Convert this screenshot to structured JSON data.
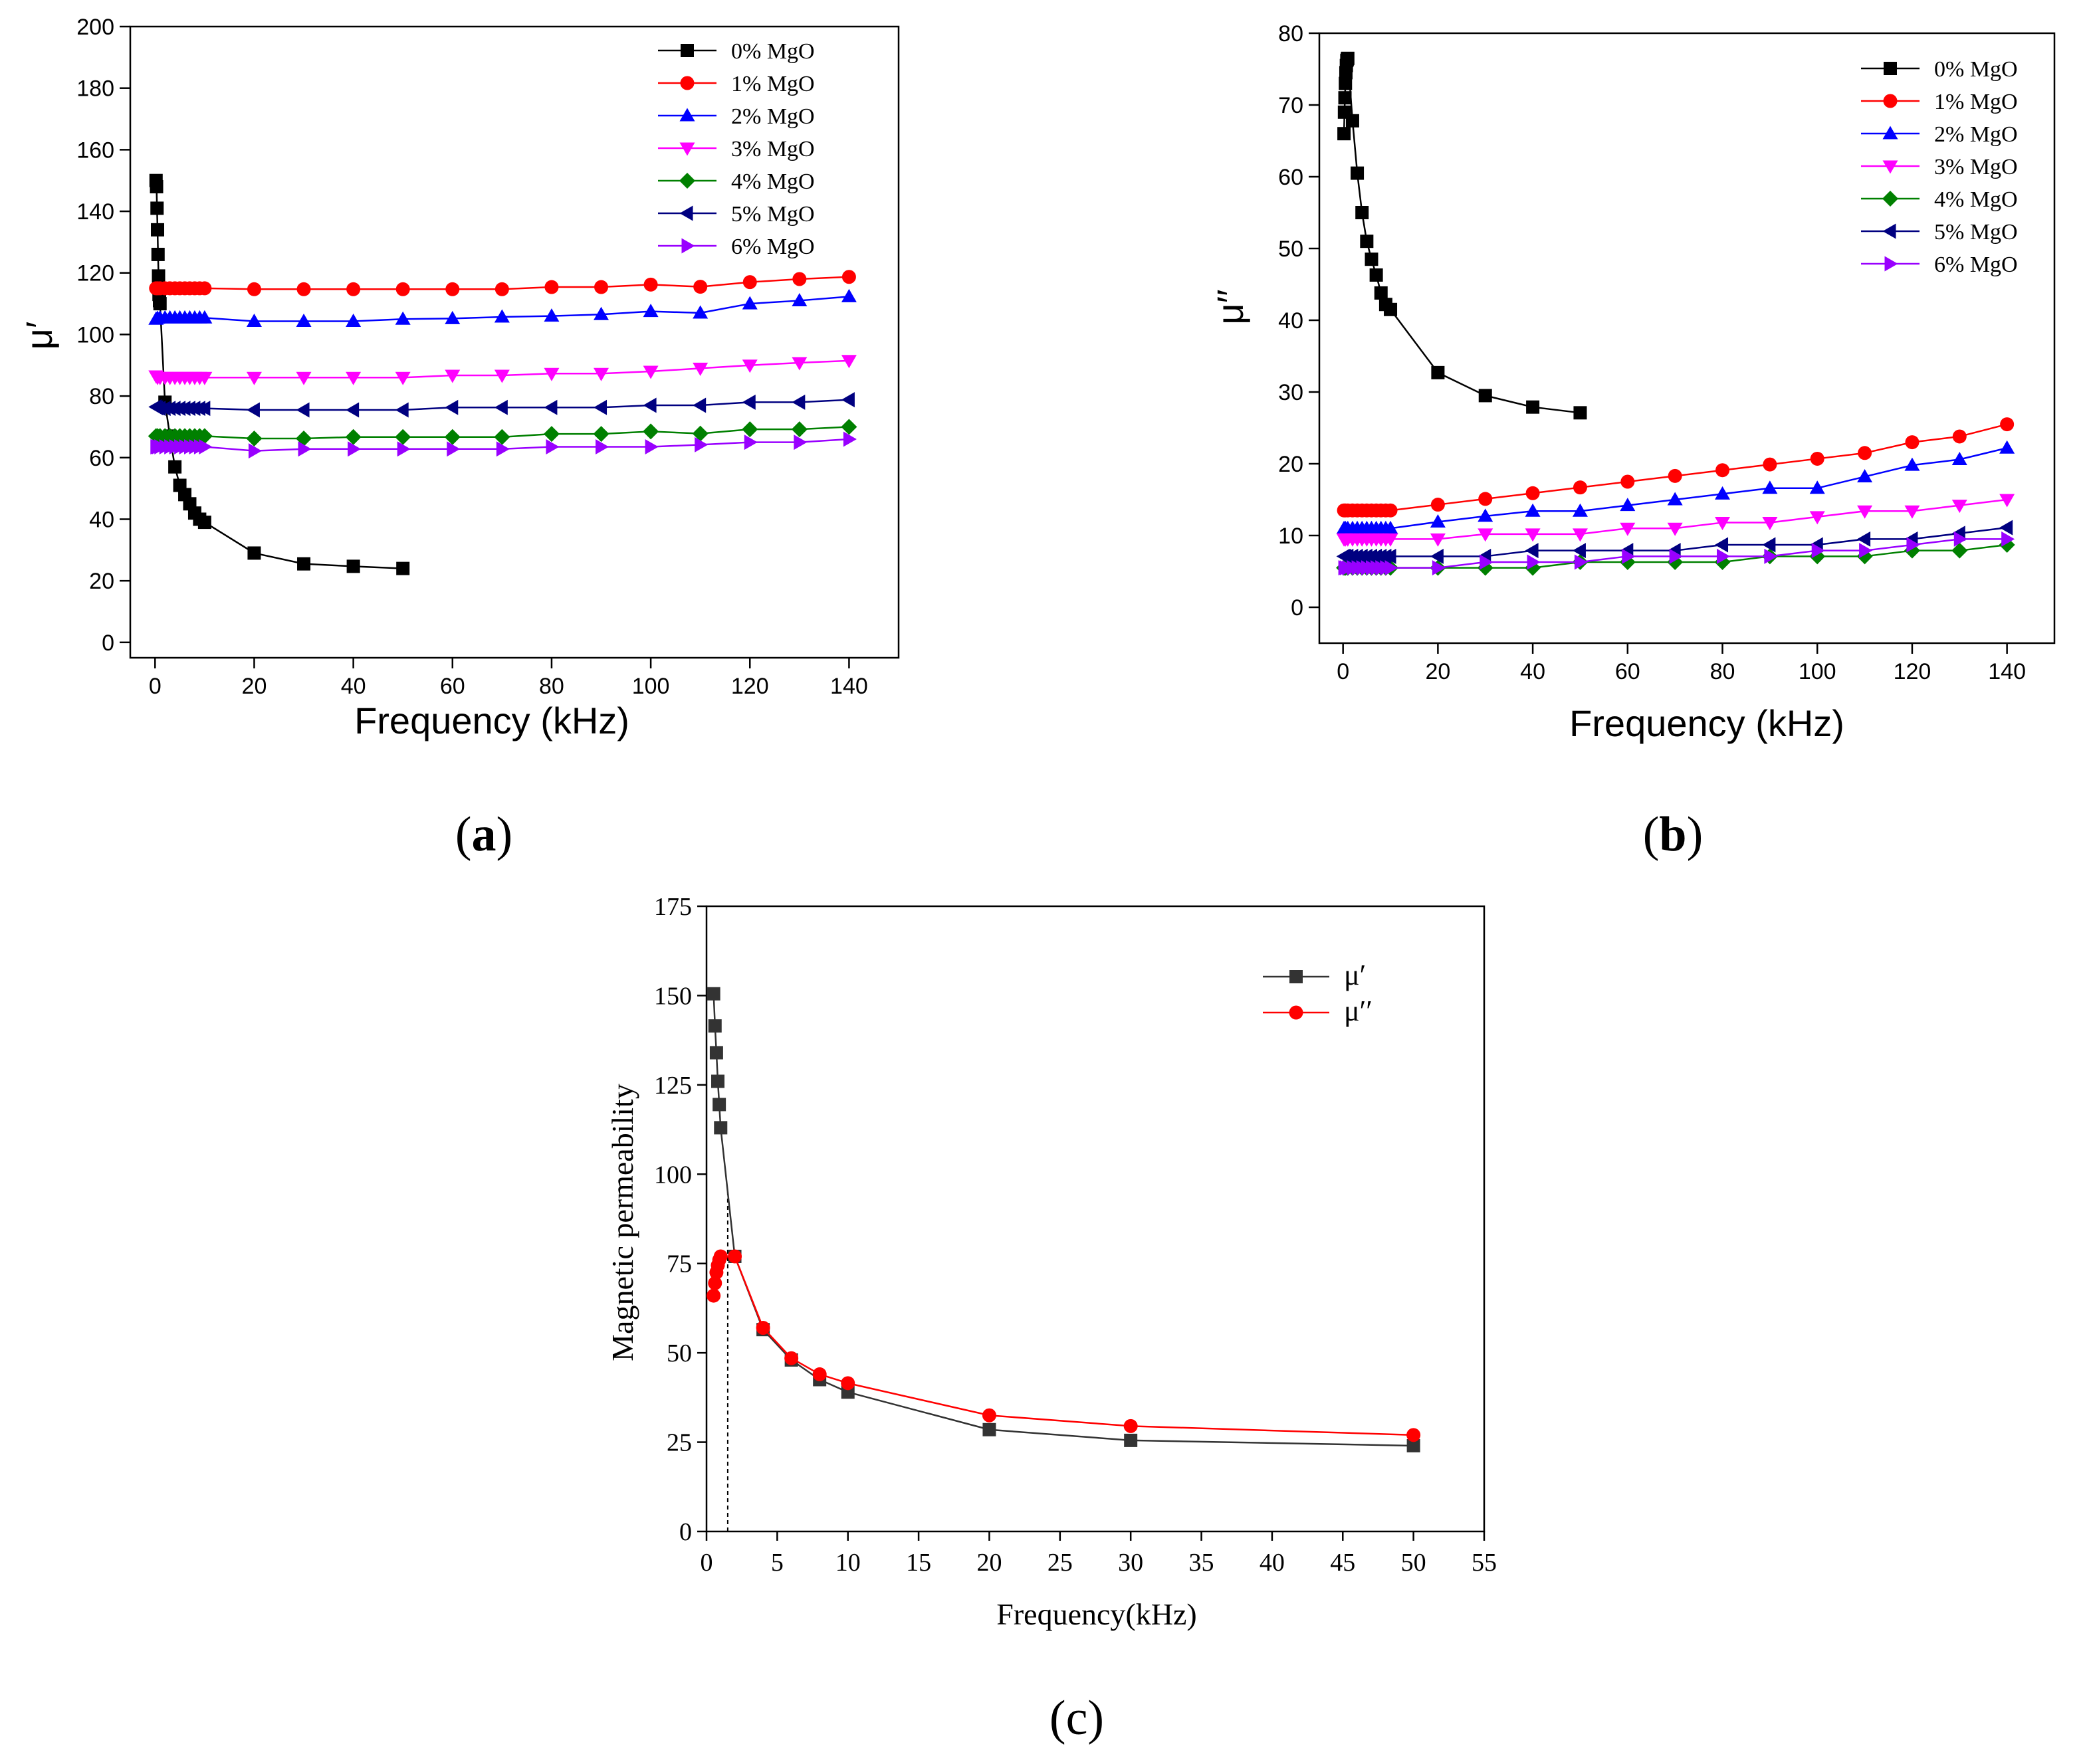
{
  "chart_data": [
    {
      "type": "line",
      "panel_label": "a",
      "xlabel": "Frequency (kHz)",
      "ylabel": "μ′",
      "xlim": [
        -5,
        150
      ],
      "ylim": [
        -5,
        200
      ],
      "xticks": [
        0,
        20,
        40,
        60,
        80,
        100,
        120,
        140
      ],
      "yticks": [
        0,
        20,
        40,
        60,
        80,
        100,
        120,
        140,
        160,
        180,
        200
      ],
      "legend_position": "top-right",
      "series": [
        {
          "name": "0% MgO",
          "color": "#000000",
          "marker": "square",
          "x": [
            0.2,
            0.3,
            0.4,
            0.5,
            0.6,
            0.7,
            0.8,
            0.9,
            1,
            2,
            3,
            4,
            5,
            6,
            7,
            8,
            9,
            10,
            20,
            30,
            40,
            50
          ],
          "y": [
            150,
            148,
            141,
            134,
            126,
            119,
            113,
            111,
            110,
            78,
            67,
            57,
            51,
            48,
            45,
            42,
            40,
            39,
            29,
            25.5,
            24.7,
            24
          ]
        },
        {
          "name": "1% MgO",
          "color": "#ff0000",
          "marker": "circle",
          "x": [
            0.2,
            0.5,
            1,
            2,
            3,
            4,
            5,
            6,
            7,
            8,
            9,
            10,
            20,
            30,
            40,
            50,
            60,
            70,
            80,
            90,
            100,
            110,
            120,
            130,
            140
          ],
          "y": [
            115,
            115,
            115,
            115,
            115,
            115,
            115,
            115,
            115,
            115,
            115,
            115,
            114.7,
            114.7,
            114.7,
            114.7,
            114.7,
            114.7,
            115.4,
            115.4,
            116.2,
            115.5,
            117,
            118,
            118.7
          ]
        },
        {
          "name": "2% MgO",
          "color": "#0000ff",
          "marker": "triangle-up",
          "x": [
            0.2,
            0.5,
            1,
            2,
            3,
            4,
            5,
            6,
            7,
            8,
            9,
            10,
            20,
            30,
            40,
            50,
            60,
            70,
            80,
            90,
            100,
            110,
            120,
            130,
            140
          ],
          "y": [
            105,
            105.3,
            105.4,
            105.4,
            105.4,
            105.4,
            105.4,
            105.4,
            105.4,
            105.4,
            105.4,
            105.4,
            104.3,
            104.3,
            104.3,
            105,
            105.2,
            105.7,
            106,
            106.5,
            107.5,
            107,
            110,
            111,
            112.3
          ]
        },
        {
          "name": "3% MgO",
          "color": "#ff00ff",
          "marker": "triangle-down",
          "x": [
            0.2,
            0.5,
            1,
            2,
            3,
            4,
            5,
            6,
            7,
            8,
            9,
            10,
            20,
            30,
            40,
            50,
            60,
            70,
            80,
            90,
            100,
            110,
            120,
            130,
            140
          ],
          "y": [
            86.5,
            86,
            86,
            86,
            86,
            86,
            86,
            86,
            86,
            86,
            86,
            86,
            86,
            86,
            86,
            86,
            86.7,
            86.7,
            87.3,
            87.3,
            88,
            89,
            90,
            90.8,
            91.5
          ]
        },
        {
          "name": "4% MgO",
          "color": "#008000",
          "marker": "diamond",
          "x": [
            0.2,
            0.5,
            1,
            2,
            3,
            4,
            5,
            6,
            7,
            8,
            9,
            10,
            20,
            30,
            40,
            50,
            60,
            70,
            80,
            90,
            100,
            110,
            120,
            130,
            140
          ],
          "y": [
            67,
            67,
            67,
            67,
            67,
            67,
            67,
            67,
            67,
            67,
            67,
            67,
            66.2,
            66.2,
            66.7,
            66.7,
            66.7,
            66.7,
            67.7,
            67.7,
            68.5,
            67.8,
            69.2,
            69.2,
            70
          ]
        },
        {
          "name": "5% MgO",
          "color": "#000080",
          "marker": "triangle-left",
          "x": [
            0.2,
            0.5,
            1,
            2,
            3,
            4,
            5,
            6,
            7,
            8,
            9,
            10,
            20,
            30,
            40,
            50,
            60,
            70,
            80,
            90,
            100,
            110,
            120,
            130,
            140
          ],
          "y": [
            76.5,
            76.2,
            76,
            76,
            76,
            76,
            76,
            76,
            76,
            76,
            76,
            76,
            75.5,
            75.5,
            75.5,
            75.5,
            76.3,
            76.3,
            76.3,
            76.3,
            77,
            77,
            78,
            78,
            78.8
          ]
        },
        {
          "name": "6% MgO",
          "color": "#9900ff",
          "marker": "triangle-right",
          "x": [
            0.2,
            0.5,
            1,
            2,
            3,
            4,
            5,
            6,
            7,
            8,
            9,
            10,
            20,
            30,
            40,
            50,
            60,
            70,
            80,
            90,
            100,
            110,
            120,
            130,
            140
          ],
          "y": [
            63.5,
            63.5,
            63.5,
            63.5,
            63.5,
            63.5,
            63.5,
            63.5,
            63.5,
            63.5,
            63.5,
            63.5,
            62.2,
            62.8,
            62.8,
            62.8,
            62.8,
            62.8,
            63.5,
            63.5,
            63.5,
            64.2,
            65,
            65,
            66
          ]
        }
      ]
    },
    {
      "type": "line",
      "panel_label": "b",
      "xlabel": "Frequency (kHz)",
      "ylabel": "μ′′",
      "xlim": [
        -5,
        150
      ],
      "ylim": [
        -5,
        80
      ],
      "xticks": [
        0,
        20,
        40,
        60,
        80,
        100,
        120,
        140
      ],
      "yticks": [
        0,
        10,
        20,
        30,
        40,
        50,
        60,
        70,
        80
      ],
      "legend_position": "top-right",
      "series": [
        {
          "name": "0% MgO",
          "color": "#000000",
          "marker": "square",
          "x": [
            0.2,
            0.3,
            0.4,
            0.5,
            0.6,
            0.7,
            0.8,
            0.9,
            1,
            2,
            3,
            4,
            5,
            6,
            7,
            8,
            9,
            10,
            20,
            30,
            40,
            50
          ],
          "y": [
            66,
            69,
            71,
            73,
            74.5,
            75.5,
            76.2,
            76.4,
            76.5,
            67.8,
            60.5,
            55,
            51,
            48.5,
            46.3,
            43.8,
            42.2,
            41.5,
            32.7,
            29.5,
            27.9,
            27.1
          ]
        },
        {
          "name": "1% MgO",
          "color": "#ff0000",
          "marker": "circle",
          "x": [
            0.2,
            0.5,
            1,
            2,
            3,
            4,
            5,
            6,
            7,
            8,
            9,
            10,
            20,
            30,
            40,
            50,
            60,
            70,
            80,
            90,
            100,
            110,
            120,
            130,
            140
          ],
          "y": [
            13.5,
            13.5,
            13.5,
            13.5,
            13.5,
            13.5,
            13.5,
            13.5,
            13.5,
            13.5,
            13.5,
            13.5,
            14.3,
            15.1,
            15.9,
            16.7,
            17.5,
            18.3,
            19.1,
            19.9,
            20.7,
            21.5,
            23,
            23.8,
            25.5
          ]
        },
        {
          "name": "2% MgO",
          "color": "#0000ff",
          "marker": "triangle-up",
          "x": [
            0.2,
            0.5,
            1,
            2,
            3,
            4,
            5,
            6,
            7,
            8,
            9,
            10,
            20,
            30,
            40,
            50,
            60,
            70,
            80,
            90,
            100,
            110,
            120,
            130,
            140
          ],
          "y": [
            11,
            11,
            11,
            11,
            11,
            11,
            11,
            11,
            11,
            11,
            11,
            11,
            11.9,
            12.7,
            13.4,
            13.4,
            14.2,
            15,
            15.8,
            16.6,
            16.6,
            18.2,
            19.8,
            20.6,
            22.2
          ]
        },
        {
          "name": "3% MgO",
          "color": "#ff00ff",
          "marker": "triangle-down",
          "x": [
            0.2,
            0.5,
            1,
            2,
            3,
            4,
            5,
            6,
            7,
            8,
            9,
            10,
            20,
            30,
            40,
            50,
            60,
            70,
            80,
            90,
            100,
            110,
            120,
            130,
            140
          ],
          "y": [
            9.5,
            9.5,
            9.5,
            9.5,
            9.5,
            9.5,
            9.5,
            9.5,
            9.5,
            9.5,
            9.5,
            9.5,
            9.5,
            10.2,
            10.2,
            10.2,
            11,
            11,
            11.8,
            11.8,
            12.6,
            13.4,
            13.4,
            14.2,
            15
          ]
        },
        {
          "name": "4% MgO",
          "color": "#008000",
          "marker": "diamond",
          "x": [
            0.2,
            0.5,
            1,
            2,
            3,
            4,
            5,
            6,
            7,
            8,
            9,
            10,
            20,
            30,
            40,
            50,
            60,
            70,
            80,
            90,
            100,
            110,
            120,
            130,
            140
          ],
          "y": [
            5.5,
            5.5,
            5.5,
            5.5,
            5.5,
            5.5,
            5.5,
            5.5,
            5.5,
            5.5,
            5.5,
            5.5,
            5.5,
            5.5,
            5.5,
            6.3,
            6.3,
            6.3,
            6.3,
            7.1,
            7.1,
            7.1,
            7.9,
            7.9,
            8.7
          ]
        },
        {
          "name": "5% MgO",
          "color": "#000080",
          "marker": "triangle-left",
          "x": [
            0.2,
            0.5,
            1,
            2,
            3,
            4,
            5,
            6,
            7,
            8,
            9,
            10,
            20,
            30,
            40,
            50,
            60,
            70,
            80,
            90,
            100,
            110,
            120,
            130,
            140
          ],
          "y": [
            7.1,
            7.1,
            7.1,
            7.1,
            7.1,
            7.1,
            7.1,
            7.1,
            7.1,
            7.1,
            7.1,
            7.1,
            7.1,
            7.1,
            7.9,
            7.9,
            7.9,
            7.9,
            8.7,
            8.7,
            8.7,
            9.5,
            9.5,
            10.3,
            11.1
          ]
        },
        {
          "name": "6% MgO",
          "color": "#9900ff",
          "marker": "triangle-right",
          "x": [
            0.2,
            0.5,
            1,
            2,
            3,
            4,
            5,
            6,
            7,
            8,
            9,
            10,
            20,
            30,
            40,
            50,
            60,
            70,
            80,
            90,
            100,
            110,
            120,
            130,
            140
          ],
          "y": [
            5.5,
            5.5,
            5.5,
            5.5,
            5.5,
            5.5,
            5.5,
            5.5,
            5.5,
            5.5,
            5.5,
            5.5,
            5.5,
            6.3,
            6.3,
            6.3,
            7.1,
            7.1,
            7.1,
            7.1,
            7.9,
            7.9,
            8.7,
            9.5,
            9.5
          ]
        }
      ]
    },
    {
      "type": "line",
      "panel_label": "c",
      "xlabel": "Frequency(kHz)",
      "ylabel": "Magnetic permeability",
      "xlim": [
        0,
        55
      ],
      "ylim": [
        0,
        175
      ],
      "xticks": [
        0,
        5,
        10,
        15,
        20,
        25,
        30,
        35,
        40,
        45,
        50,
        55
      ],
      "yticks": [
        0,
        25,
        50,
        75,
        100,
        125,
        150,
        175
      ],
      "legend_position": "top-right",
      "dashed_marker_x": 1.5,
      "series": [
        {
          "name": "μ′",
          "color": "#333333",
          "marker": "square",
          "x": [
            0.5,
            0.6,
            0.7,
            0.8,
            0.9,
            1,
            2,
            4,
            6,
            8,
            10,
            20,
            30,
            50
          ],
          "y": [
            150.5,
            141.5,
            134,
            126,
            119.5,
            113,
            77,
            56.5,
            48,
            42.5,
            39,
            28.5,
            25.5,
            24
          ]
        },
        {
          "name": "μ′′",
          "color": "#ff0000",
          "marker": "circle",
          "x": [
            0.5,
            0.6,
            0.7,
            0.8,
            0.9,
            1,
            2,
            4,
            6,
            8,
            10,
            20,
            30,
            50
          ],
          "y": [
            66,
            69.5,
            72.5,
            74.5,
            76,
            77,
            77,
            57,
            48.5,
            44,
            41.5,
            32.5,
            29.5,
            27
          ]
        }
      ]
    }
  ]
}
